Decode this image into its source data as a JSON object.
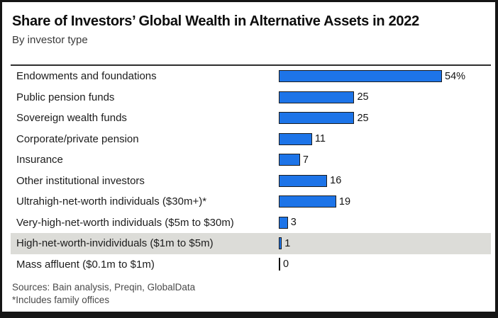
{
  "header": {
    "title": "Share of Investors’ Global Wealth in Alternative Assets in 2022",
    "subtitle": "By investor type"
  },
  "chart_data": {
    "type": "bar",
    "orientation": "horizontal",
    "title": "Share of Investors’ Global Wealth in Alternative Assets in 2022",
    "subtitle": "By investor type",
    "categories": [
      "Endowments and foundations",
      "Public pension funds",
      "Sovereign wealth funds",
      "Corporate/private pension",
      "Insurance",
      "Other institutional investors",
      "Ultrahigh-net-worth individuals ($30m+)*",
      "Very-high-net-worth individuals ($5m to $30m)",
      "High-net-worth-invidividuals ($1m to $5m)",
      "Mass affluent ($0.1m to $1m)"
    ],
    "values": [
      54,
      25,
      25,
      11,
      7,
      16,
      19,
      3,
      1,
      0
    ],
    "value_labels": [
      "54%",
      "25",
      "25",
      "11",
      "7",
      "16",
      "19",
      "3",
      "1",
      "0"
    ],
    "unit": "percent",
    "xlim": [
      0,
      54
    ],
    "grid": false,
    "legend": false,
    "highlight_index": 8,
    "bar_color": "#1d74e8",
    "bar_border_color": "#1c1c1c",
    "highlight_bg": "#dcdcd8",
    "zero_tick_color": "#111111"
  },
  "footer": {
    "sources": "Sources: Bain analysis, Preqin, GlobalData",
    "footnote": "*Includes family offices"
  }
}
